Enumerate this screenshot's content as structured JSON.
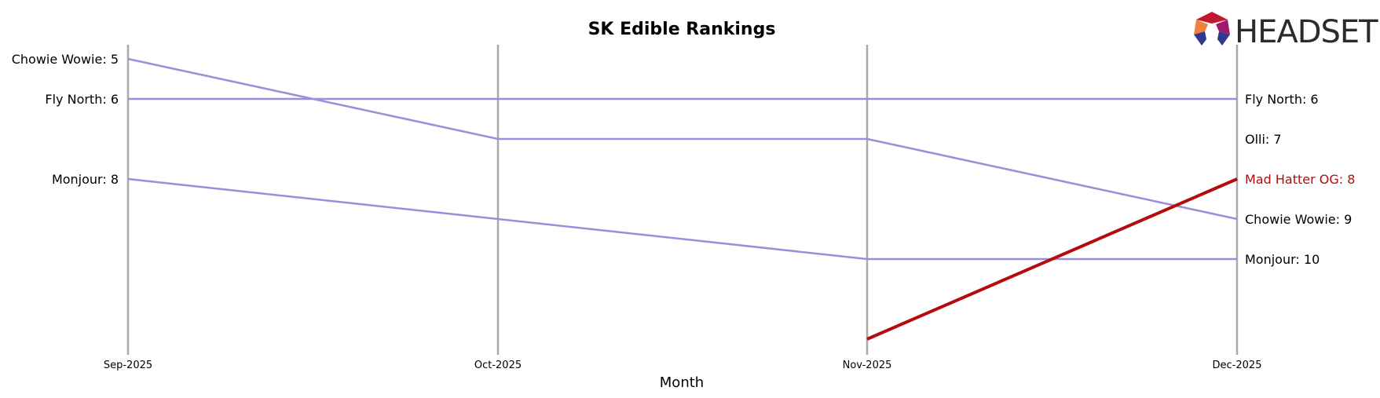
{
  "chart_data": {
    "type": "line",
    "title": "SK Edible Rankings",
    "xlabel": "Month",
    "ylabel": "",
    "categories": [
      "Sep-2025",
      "Oct-2025",
      "Nov-2025",
      "Dec-2025"
    ],
    "y_inverted": true,
    "ylim": [
      4.65,
      12.5
    ],
    "grid": false,
    "series": [
      {
        "name": "Chowie Wowie",
        "values": [
          5,
          7,
          7,
          9
        ],
        "color": "#9b8fdb",
        "highlight": false,
        "start_label": "Chowie Wowie: 5",
        "end_label": "Chowie Wowie: 9"
      },
      {
        "name": "Fly North",
        "values": [
          6,
          6,
          6,
          6
        ],
        "color": "#9b8fdb",
        "highlight": false,
        "start_label": "Fly North: 6",
        "end_label": "Fly North: 6"
      },
      {
        "name": "Monjour",
        "values": [
          8,
          9,
          10,
          10
        ],
        "color": "#9b8fdb",
        "highlight": false,
        "start_label": "Monjour: 8",
        "end_label": "Monjour: 10"
      },
      {
        "name": "Mad Hatter OG",
        "values": [
          null,
          null,
          12,
          8
        ],
        "color": "#b30c0c",
        "highlight": true,
        "start_label": "",
        "end_label": "Mad Hatter OG: 8"
      }
    ],
    "extra_end_labels": [
      {
        "text": "Olli: 7",
        "rank": 7
      }
    ]
  },
  "brand": {
    "logo_text": "HEADSET"
  }
}
